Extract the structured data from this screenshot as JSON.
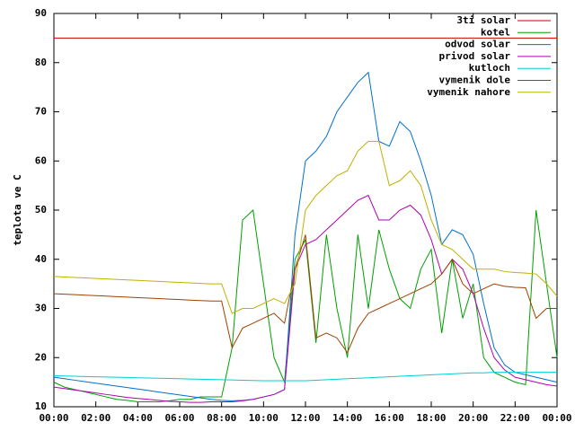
{
  "chart_data": {
    "type": "line",
    "ylabel": "teplota ve C",
    "x": [
      0,
      0.5,
      1,
      1.5,
      2,
      2.5,
      3,
      3.5,
      4,
      4.5,
      5,
      5.5,
      6,
      6.5,
      7,
      7.5,
      8,
      8.5,
      9,
      9.5,
      10,
      10.5,
      11,
      11.5,
      12,
      12.5,
      13,
      13.5,
      14,
      14.5,
      15,
      15.5,
      16,
      16.5,
      17,
      17.5,
      18,
      18.5,
      19,
      19.5,
      20,
      20.5,
      21,
      21.5,
      22,
      22.5,
      23,
      23.5,
      24
    ],
    "xlim": [
      0,
      24
    ],
    "xticks": [
      {
        "value": 0,
        "label": "00:00"
      },
      {
        "value": 2,
        "label": "02:00"
      },
      {
        "value": 4,
        "label": "04:00"
      },
      {
        "value": 6,
        "label": "06:00"
      },
      {
        "value": 8,
        "label": "08:00"
      },
      {
        "value": 10,
        "label": "10:00"
      },
      {
        "value": 12,
        "label": "12:00"
      },
      {
        "value": 14,
        "label": "14:00"
      },
      {
        "value": 16,
        "label": "16:00"
      },
      {
        "value": 18,
        "label": "18:00"
      },
      {
        "value": 20,
        "label": "20:00"
      },
      {
        "value": 22,
        "label": "22:00"
      },
      {
        "value": 24,
        "label": "00:00"
      }
    ],
    "ylim": [
      10,
      90
    ],
    "yticks": [
      10,
      20,
      30,
      40,
      50,
      60,
      70,
      80,
      90
    ],
    "legend": "top-right",
    "series": [
      {
        "name": "3ti solar",
        "color": "#cc0000",
        "values": [
          85,
          85,
          85,
          85,
          85,
          85,
          85,
          85,
          85,
          85,
          85,
          85,
          85,
          85,
          85,
          85,
          85,
          85,
          85,
          85,
          85,
          85,
          85,
          85,
          85,
          85,
          85,
          85,
          85,
          85,
          85,
          85,
          85,
          85,
          85,
          85,
          85,
          85,
          85,
          85,
          85,
          85,
          85,
          85,
          85,
          85,
          85,
          85,
          85
        ]
      },
      {
        "name": "kotel",
        "color": "#00a000",
        "values": [
          15,
          14,
          13.5,
          13,
          12.5,
          12,
          11.5,
          11.3,
          11,
          11,
          11,
          11.2,
          11.5,
          11.5,
          12,
          12,
          12,
          22,
          48,
          50,
          35,
          20,
          15,
          40,
          44,
          23,
          45,
          30,
          20,
          45,
          30,
          46,
          38,
          32,
          30,
          38,
          42,
          25,
          40,
          28,
          35,
          20,
          17,
          16,
          15,
          14.5,
          50,
          35,
          20
        ]
      },
      {
        "name": "odvod solar",
        "color": "#0070d0",
        "values": [
          16,
          15.7,
          15.4,
          15.1,
          14.8,
          14.5,
          14.2,
          13.9,
          13.6,
          13.3,
          13,
          12.7,
          12.4,
          12.1,
          11.8,
          11.5,
          11.3,
          11.2,
          11.3,
          11.5,
          12,
          12.5,
          13.5,
          45,
          60,
          62,
          65,
          70,
          73,
          76,
          78,
          64,
          63,
          68,
          66,
          60,
          53,
          43,
          46,
          45,
          41,
          31,
          22,
          18.5,
          17,
          16.5,
          16,
          15.5,
          15
        ]
      },
      {
        "name": "privod solar",
        "color": "#b000b0",
        "values": [
          14,
          13.7,
          13.4,
          13.1,
          12.8,
          12.5,
          12.2,
          11.9,
          11.7,
          11.5,
          11.3,
          11.1,
          11,
          10.9,
          10.9,
          11,
          11,
          11,
          11.2,
          11.5,
          12,
          12.5,
          13.5,
          38,
          43,
          44,
          46,
          48,
          50,
          52,
          53,
          48,
          48,
          50,
          51,
          49,
          44,
          37,
          40,
          38,
          33,
          26,
          20,
          17.5,
          16,
          15.5,
          15,
          14.5,
          14.2
        ]
      },
      {
        "name": "kutloch",
        "color": "#00d0d0",
        "values": [
          16.3,
          16.25,
          16.2,
          16.15,
          16.1,
          16.05,
          16,
          15.95,
          15.9,
          15.85,
          15.8,
          15.75,
          15.7,
          15.65,
          15.6,
          15.55,
          15.5,
          15.45,
          15.4,
          15.35,
          15.3,
          15.3,
          15.3,
          15.3,
          15.3,
          15.4,
          15.5,
          15.6,
          15.7,
          15.8,
          15.9,
          16,
          16.1,
          16.2,
          16.3,
          16.4,
          16.5,
          16.6,
          16.7,
          16.8,
          16.9,
          16.9,
          17,
          17,
          17,
          17,
          17,
          17,
          17
        ]
      },
      {
        "name": "vymenik dole",
        "color": "#a04000",
        "values": [
          33,
          32.9,
          32.8,
          32.7,
          32.6,
          32.5,
          32.4,
          32.3,
          32.2,
          32.1,
          32,
          31.9,
          31.8,
          31.7,
          31.6,
          31.5,
          31.5,
          22,
          26,
          27,
          28,
          29,
          27,
          38,
          45,
          24,
          25,
          24,
          21,
          26,
          29,
          30,
          31,
          32,
          33,
          34,
          35,
          37,
          40,
          35,
          33,
          34,
          35,
          34.5,
          34.3,
          34.2,
          28,
          30,
          30
        ]
      },
      {
        "name": "vymenik nahore",
        "color": "#c0b000",
        "values": [
          36.5,
          36.4,
          36.3,
          36.2,
          36.1,
          36,
          35.9,
          35.8,
          35.7,
          35.6,
          35.5,
          35.4,
          35.3,
          35.2,
          35.1,
          35,
          35,
          29,
          30,
          30,
          31,
          32,
          31,
          35,
          50,
          53,
          55,
          57,
          58,
          62,
          64,
          64,
          55,
          56,
          58,
          55,
          48,
          43,
          42,
          40,
          38,
          38,
          38,
          37.5,
          37.3,
          37.2,
          37,
          35,
          32.5
        ]
      }
    ]
  }
}
